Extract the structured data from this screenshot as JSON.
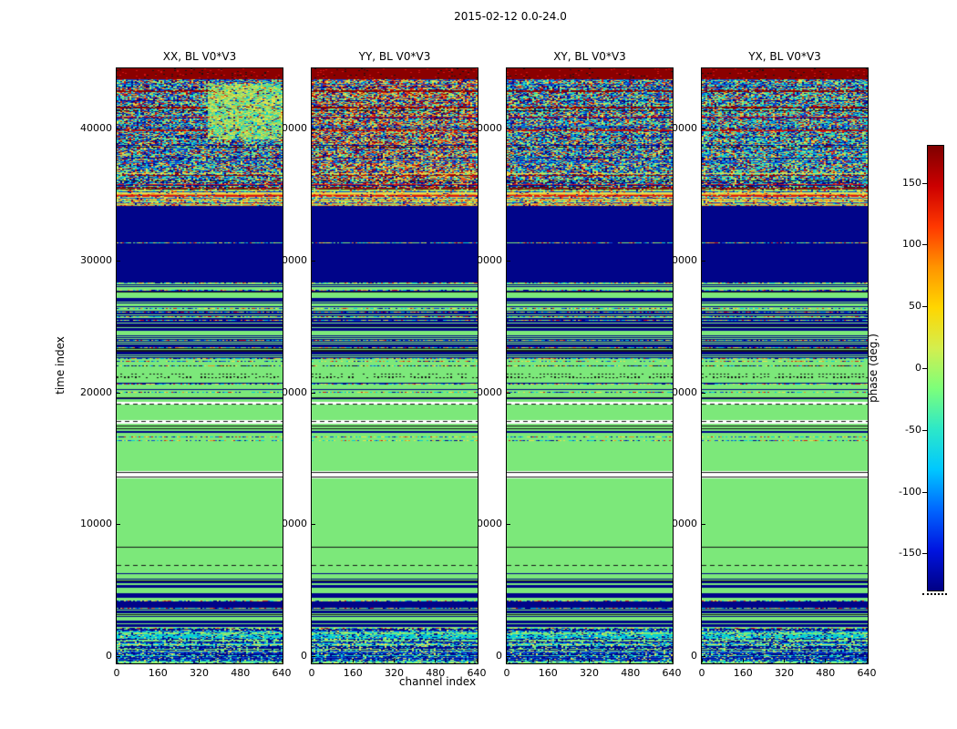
{
  "chart_data": {
    "type": "heatmap",
    "title": "2015-02-12 0.0-24.0",
    "xlabel": "channel index",
    "ylabel": "time index",
    "x_range": [
      0,
      640
    ],
    "y_range": [
      -550,
      44560
    ],
    "x_ticks": [
      0,
      160,
      320,
      480,
      640
    ],
    "y_ticks": [
      0,
      10000,
      20000,
      30000,
      40000
    ],
    "panels": [
      {
        "title": "XX, BL V0*V3",
        "noise_profile": "blue"
      },
      {
        "title": "YY, BL V0*V3",
        "noise_profile": "red"
      },
      {
        "title": "XY, BL V0*V3",
        "noise_profile": "blue"
      },
      {
        "title": "YX, BL V0*V3",
        "noise_profile": "cyan"
      }
    ],
    "colorbar": {
      "label": "phase (deg.)",
      "vmin": -180,
      "vmax": 180,
      "ticks": [
        150,
        100,
        50,
        0,
        -50,
        -100,
        -150
      ],
      "gradient_top_to_bottom": [
        "#7f0000",
        "#cc0000",
        "#ff3800",
        "#ff9400",
        "#ffd600",
        "#d4ee4e",
        "#7dff7a",
        "#2de8c8",
        "#00c8ff",
        "#0066ff",
        "#0014e0",
        "#000084"
      ]
    },
    "palette": {
      "navy": "#000489",
      "blue": "#0a4ad6",
      "cyan": "#06cfd8",
      "green": "#7ce87a",
      "yellow": "#e8e24a",
      "orange": "#f09020",
      "red": "#d41414",
      "darkred": "#8b0000",
      "black": "#161616",
      "olive": "#aac84e"
    },
    "bands": [
      {
        "t": [
          -550,
          2100
        ],
        "type": "rownoise"
      },
      {
        "t": [
          2100,
          4800
        ],
        "type": "barcode",
        "density": 0.5,
        "speckle": true
      },
      {
        "t": [
          4800,
          6500
        ],
        "type": "lines",
        "count": 8
      },
      {
        "t": [
          6500,
          7400
        ],
        "type": "solid",
        "color": "green"
      },
      {
        "t": [
          6900,
          6900
        ],
        "type": "dashline"
      },
      {
        "t": [
          7400,
          13500
        ],
        "type": "solid",
        "color": "green"
      },
      {
        "t": [
          8300,
          8300
        ],
        "type": "hline"
      },
      {
        "t": [
          13600,
          13600
        ],
        "type": "hline"
      },
      {
        "t": [
          13950,
          13950
        ],
        "type": "hline"
      },
      {
        "t": [
          14050,
          16200
        ],
        "type": "solid",
        "color": "green"
      },
      {
        "t": [
          16200,
          17650
        ],
        "type": "lines",
        "count": 5,
        "speckle": true
      },
      {
        "t": [
          17800,
          17800
        ],
        "type": "dashline"
      },
      {
        "t": [
          17900,
          19050
        ],
        "type": "solid",
        "color": "green"
      },
      {
        "t": [
          19150,
          19150
        ],
        "type": "dashline"
      },
      {
        "t": [
          19250,
          20800
        ],
        "type": "lines",
        "count": 4,
        "speckle": true
      },
      {
        "t": [
          20800,
          22500
        ],
        "type": "specklines",
        "count": 6
      },
      {
        "t": [
          22500,
          27200
        ],
        "type": "barcode",
        "density": 0.55,
        "speckle": true
      },
      {
        "t": [
          27200,
          28300
        ],
        "type": "lines",
        "count": 6,
        "speckle": true
      },
      {
        "t": [
          28300,
          34100
        ],
        "type": "solid",
        "color": "navy"
      },
      {
        "t": [
          31400,
          31400
        ],
        "type": "speckline"
      },
      {
        "t": [
          34100,
          35400
        ],
        "type": "rainbow"
      },
      {
        "t": [
          34900,
          35150
        ],
        "type": "hotline"
      },
      {
        "t": [
          35400,
          43700
        ],
        "type": "noise"
      },
      {
        "t": [
          43700,
          44560
        ],
        "type": "solid",
        "color": "darkred"
      }
    ],
    "patches": [
      {
        "panel": 0,
        "t": [
          39200,
          43400
        ],
        "x": [
          0.55,
          1.0
        ],
        "palette_profile": "khaki"
      }
    ]
  }
}
